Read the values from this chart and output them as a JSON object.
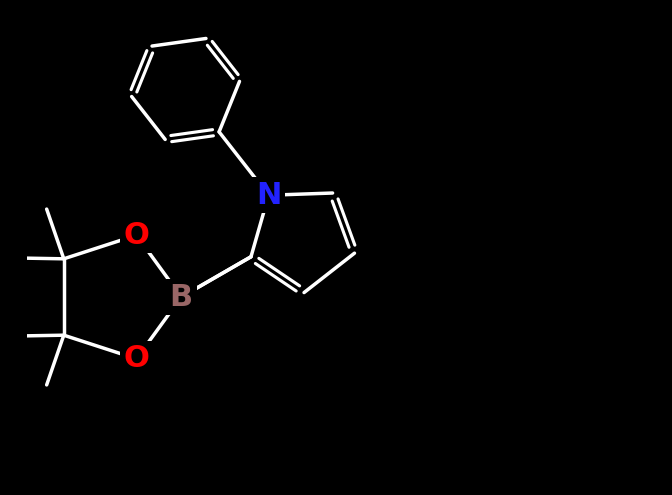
{
  "background_color": "#000000",
  "bond_color": "#ffffff",
  "atom_B_color": "#996666",
  "atom_O_color": "#ff0000",
  "atom_N_color": "#2222ff",
  "font_size": 22,
  "lw": 2.5,
  "figsize": [
    6.72,
    4.95
  ],
  "dpi": 100,
  "xlim": [
    -2.5,
    7.5
  ],
  "ylim": [
    -3.5,
    4.5
  ]
}
